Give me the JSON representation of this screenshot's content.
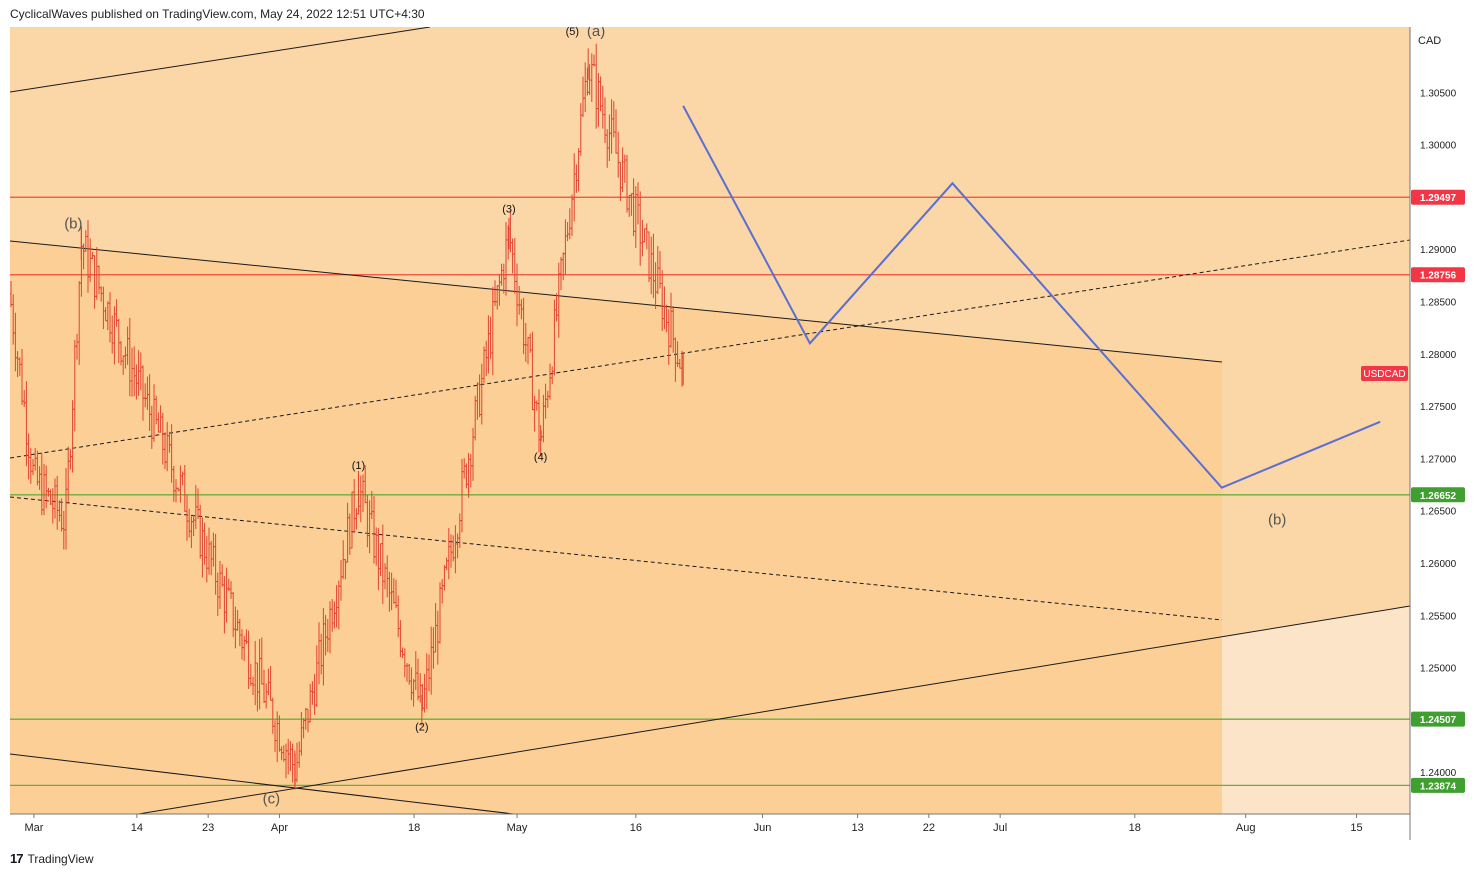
{
  "header": {
    "text": "CyclicalWaves published on TradingView.com, May 24, 2022 12:51 UTC+4:30"
  },
  "footer": {
    "logo": "17",
    "brand": "TradingView"
  },
  "colors": {
    "bg_outer": "#fce4c8",
    "bg_channel": "#fbd6a6",
    "bg_triangle": "#fccf96",
    "candle": "#e0432f",
    "projection": "#5a6fd0",
    "resistance": "#ef4b3a",
    "support": "#6aaf3e",
    "tag_red": "#f23645",
    "tag_green": "#3f9f2f"
  },
  "chart_data": {
    "type": "candlestick",
    "symbol_tag": "USDCAD",
    "currency_label": "CAD",
    "y_ticks": [
      "1.30500",
      "1.30000",
      "1.29000",
      "1.28500",
      "1.28000",
      "1.27500",
      "1.27000",
      "1.26500",
      "1.26000",
      "1.25500",
      "1.25000",
      "1.24000"
    ],
    "x_ticks": [
      "Mar",
      "14",
      "23",
      "Apr",
      "18",
      "May",
      "16",
      "Jun",
      "13",
      "22",
      "Jul",
      "18",
      "Aug",
      "15"
    ],
    "price_levels": [
      {
        "value": 1.29497,
        "label": "1.29497",
        "kind": "resistance"
      },
      {
        "value": 1.28756,
        "label": "1.28756",
        "kind": "resistance"
      },
      {
        "value": 1.26652,
        "label": "1.26652",
        "kind": "support"
      },
      {
        "value": 1.24507,
        "label": "1.24507",
        "kind": "support"
      },
      {
        "value": 1.23874,
        "label": "1.23874",
        "kind": "support"
      }
    ],
    "wave_labels": [
      "(b)",
      "(1)",
      "(2)",
      "(3)",
      "(4)",
      "(5)",
      "(a)",
      "(c)",
      "(b)"
    ],
    "key_points": [
      {
        "date": "2022-03-09",
        "price": 1.2905,
        "label": "(b)"
      },
      {
        "date": "2022-04-05",
        "price": 1.2403,
        "label": "(c)"
      },
      {
        "date": "2022-04-13",
        "price": 1.2673,
        "label": "(1)"
      },
      {
        "date": "2022-04-21",
        "price": 1.2459,
        "label": "(2)"
      },
      {
        "date": "2022-05-02",
        "price": 1.2915,
        "label": "(3)"
      },
      {
        "date": "2022-05-06",
        "price": 1.2717,
        "label": "(4)"
      },
      {
        "date": "2022-05-12",
        "price": 1.3077,
        "label": "(5) (a)"
      },
      {
        "date": "2022-05-24",
        "price": 1.2785
      }
    ],
    "projection_path": [
      {
        "date": "2022-05-24",
        "price": 1.3037
      },
      {
        "date": "2022-06-09",
        "price": 1.281
      },
      {
        "date": "2022-06-27",
        "price": 1.2963
      },
      {
        "date": "2022-07-31",
        "price": 1.2672
      },
      {
        "date": "2022-08-20",
        "price": 1.2735
      }
    ]
  }
}
